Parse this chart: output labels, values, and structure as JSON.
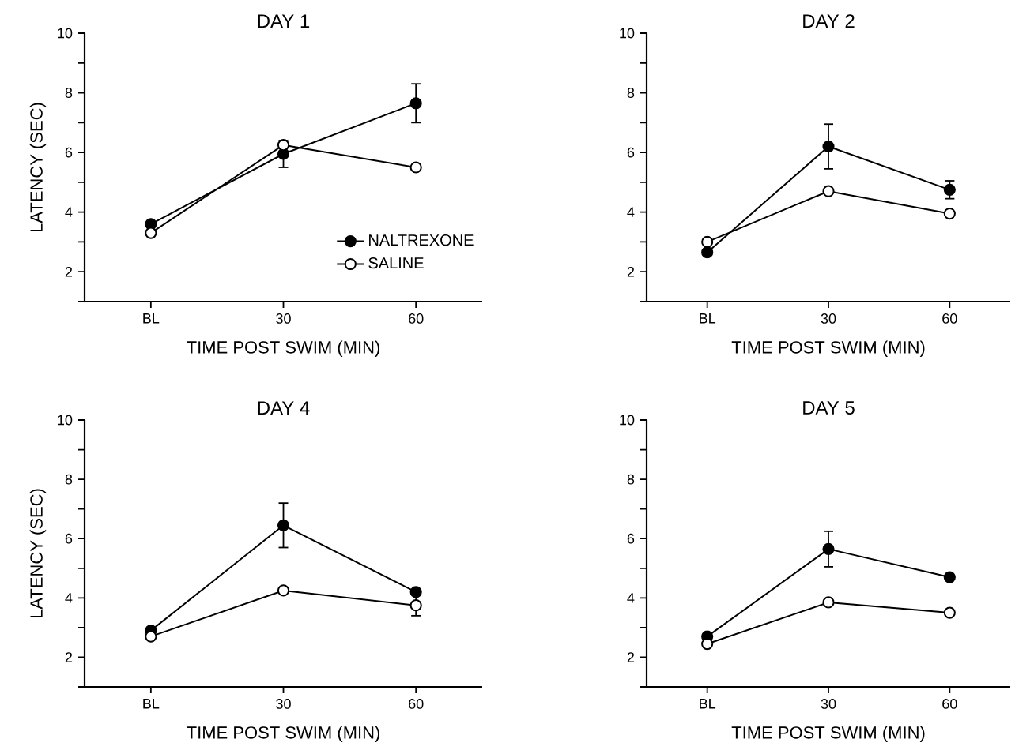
{
  "chart_data": [
    {
      "type": "line",
      "title": "DAY 1",
      "xlabel": "TIME POST SWIM (MIN)",
      "ylabel": "LATENCY (SEC)",
      "categories": [
        "BL",
        "30",
        "60"
      ],
      "ylim": [
        1,
        10
      ],
      "yticks": [
        {
          "value": 1,
          "label": null
        },
        2,
        {
          "value": 3,
          "label": null
        },
        4,
        {
          "value": 5,
          "label": null
        },
        6,
        {
          "value": 7,
          "label": null
        },
        8,
        {
          "value": 9,
          "label": null
        },
        10
      ],
      "marker": "circle",
      "legend": "bottom right",
      "series": [
        {
          "name": "NALTREXONE",
          "color": "#000000",
          "values": [
            3.6,
            5.95,
            7.65
          ],
          "errors": [
            null,
            0.45,
            0.65
          ]
        },
        {
          "name": "SALINE",
          "color": "#ffffff",
          "values": [
            3.3,
            6.25,
            5.5
          ]
        }
      ]
    },
    {
      "type": "line",
      "title": "DAY 2",
      "xlabel": "TIME POST SWIM (MIN)",
      "categories": [
        "BL",
        "30",
        "60"
      ],
      "ylim": [
        1,
        10
      ],
      "yticks": [
        {
          "value": 1,
          "label": null
        },
        2,
        {
          "value": 3,
          "label": null
        },
        4,
        {
          "value": 5,
          "label": null
        },
        6,
        {
          "value": 7,
          "label": null
        },
        8,
        {
          "value": 9,
          "label": null
        },
        10
      ],
      "marker": "circle",
      "series": [
        {
          "color": "#000000",
          "values": [
            2.65,
            6.2,
            4.75
          ],
          "errors": [
            null,
            0.75,
            0.3
          ]
        },
        {
          "color": "#ffffff",
          "values": [
            3.0,
            4.7,
            3.95
          ]
        }
      ]
    },
    {
      "type": "line",
      "title": "DAY 4",
      "xlabel": "TIME POST SWIM (MIN)",
      "ylabel": "LATENCY (SEC)",
      "categories": [
        "BL",
        "30",
        "60"
      ],
      "ylim": [
        1,
        10
      ],
      "yticks": [
        {
          "value": 1,
          "label": null
        },
        2,
        {
          "value": 3,
          "label": null
        },
        4,
        {
          "value": 5,
          "label": null
        },
        6,
        {
          "value": 7,
          "label": null
        },
        8,
        {
          "value": 9,
          "label": null
        },
        10
      ],
      "marker": "circle",
      "series": [
        {
          "color": "#000000",
          "values": [
            2.9,
            6.45,
            4.2
          ],
          "errors": [
            null,
            0.75,
            null
          ]
        },
        {
          "color": "#ffffff",
          "values": [
            2.7,
            4.25,
            3.75
          ],
          "errors": [
            null,
            null,
            0.35
          ]
        }
      ]
    },
    {
      "type": "line",
      "title": "DAY 5",
      "xlabel": "TIME POST SWIM (MIN)",
      "categories": [
        "BL",
        "30",
        "60"
      ],
      "ylim": [
        1,
        10
      ],
      "yticks": [
        {
          "value": 1,
          "label": null
        },
        2,
        {
          "value": 3,
          "label": null
        },
        4,
        {
          "value": 5,
          "label": null
        },
        6,
        {
          "value": 7,
          "label": null
        },
        8,
        {
          "value": 9,
          "label": null
        },
        10
      ],
      "marker": "circle",
      "series": [
        {
          "color": "#000000",
          "values": [
            2.7,
            5.65,
            4.7
          ],
          "errors": [
            null,
            0.6,
            null
          ]
        },
        {
          "color": "#ffffff",
          "values": [
            2.45,
            3.85,
            3.5
          ]
        }
      ]
    }
  ]
}
